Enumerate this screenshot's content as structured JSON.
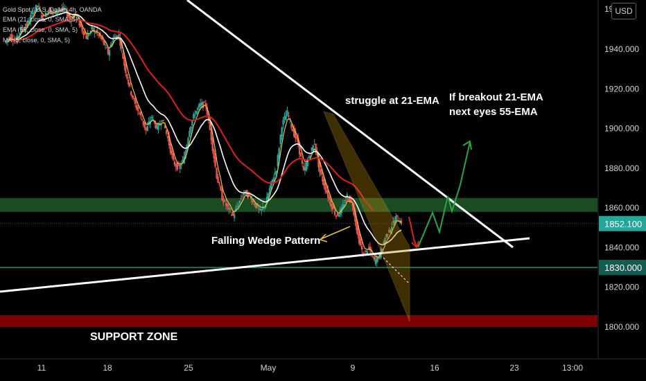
{
  "chart_data": {
    "type": "candlestick",
    "symbol_line": "Gold Spot / U.S. Dollar, 4h, OANDA",
    "indicators": [
      {
        "label": "EMA (21, close, 0, SMA, 5)",
        "color": "#ffffff"
      },
      {
        "label": "EMA (55, close, 0, SMA, 5)",
        "color": "#e01e1e"
      },
      {
        "label": "MA (5, close, 0, SMA, 5)",
        "color": "#e8c547"
      }
    ],
    "currency": "USD",
    "y_ticks": [
      "1940.000",
      "1920.000",
      "1900.000",
      "1880.000",
      "1860.000",
      "1840.000",
      "1820.000",
      "1800.000"
    ],
    "y_top_partial": "19",
    "x_ticks": [
      "11",
      "18",
      "25",
      "May",
      "9",
      "16",
      "23",
      "13:00"
    ],
    "ylim": [
      1791,
      1962
    ],
    "last_price": "1852.100",
    "marked_level": "1830.000",
    "colors": {
      "up": "#26a69a",
      "down": "#ef5350",
      "ema21": "#ffffff",
      "ema55": "#e01e1e",
      "ma5": "#e8c547",
      "zone_green": "#1f5a2a",
      "zone_red": "#8b0000"
    },
    "zones": [
      {
        "name": "resistance-zone",
        "from": 1858,
        "to": 1865
      },
      {
        "name": "support-zone",
        "from": 1800,
        "to": 1806
      }
    ],
    "price_path": [
      1943,
      1947,
      1944,
      1950,
      1952,
      1958,
      1962,
      1955,
      1960,
      1958,
      1960,
      1960,
      1955,
      1958,
      1951,
      1946,
      1950,
      1948,
      1944,
      1938,
      1946,
      1947,
      1932,
      1920,
      1912,
      1906,
      1899,
      1906,
      1900,
      1905,
      1895,
      1883,
      1880,
      1885,
      1900,
      1908,
      1912,
      1912,
      1895,
      1876,
      1865,
      1860,
      1856,
      1862,
      1868,
      1866,
      1862,
      1858,
      1862,
      1872,
      1880,
      1902,
      1908,
      1899,
      1892,
      1878,
      1886,
      1893,
      1878,
      1870,
      1862,
      1856,
      1859,
      1866,
      1862,
      1846,
      1836,
      1840,
      1833,
      1836,
      1845,
      1850,
      1855,
      1853
    ],
    "annotations": {
      "struggle": "struggle at 21-EMA",
      "breakout_line1": "If breakout 21-EMA",
      "breakout_line2": "next eyes 55-EMA",
      "wedge": "Falling Wedge Pattern",
      "support": "SUPPORT ZONE"
    }
  }
}
